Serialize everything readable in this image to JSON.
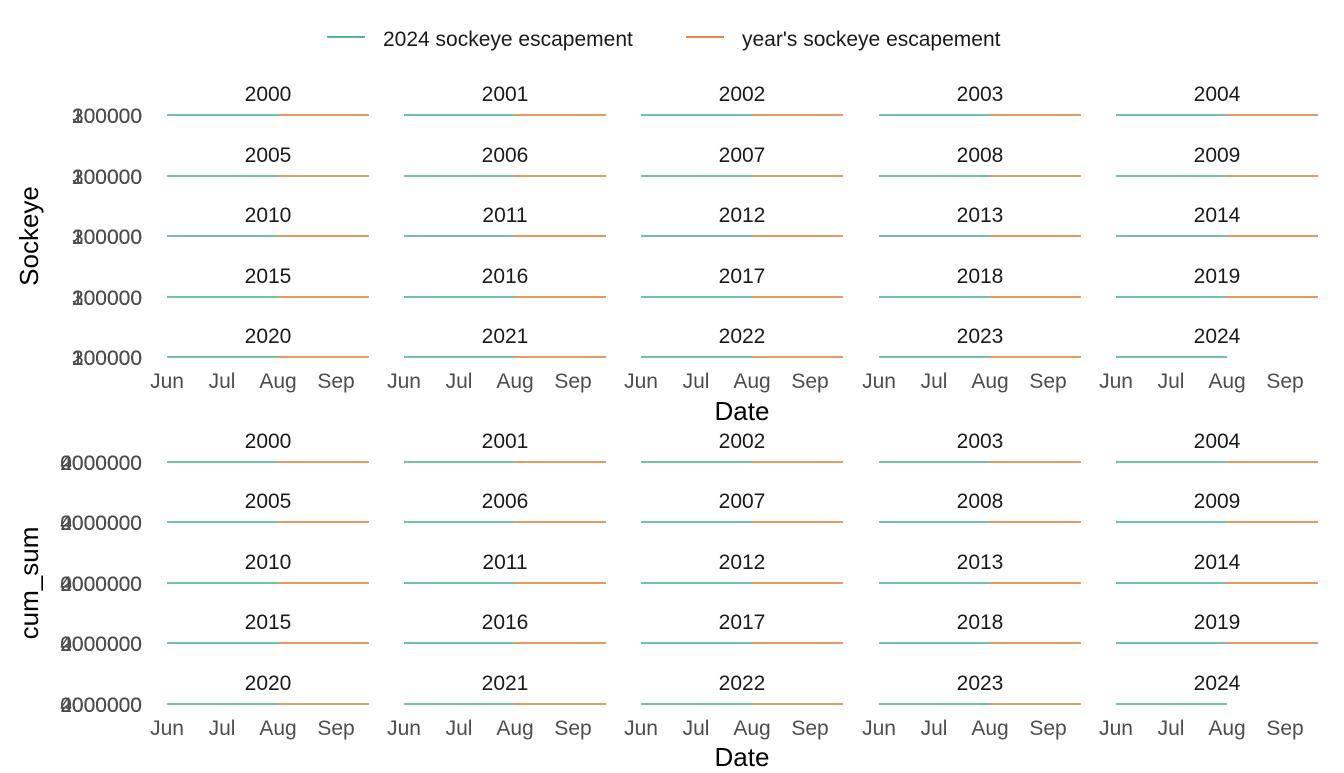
{
  "legend": {
    "items": [
      {
        "label": "2024 sockeye escapement",
        "color": "#1b9e77"
      },
      {
        "label": "year's sockeye escapement",
        "color": "#d95f02"
      }
    ],
    "placement": "top"
  },
  "chart_data": [
    {
      "type": "line",
      "facet_layout": "5x5 grid",
      "panels": [
        "2000",
        "2001",
        "2002",
        "2003",
        "2004",
        "2005",
        "2006",
        "2007",
        "2008",
        "2009",
        "2010",
        "2011",
        "2012",
        "2013",
        "2014",
        "2015",
        "2016",
        "2017",
        "2018",
        "2019",
        "2020",
        "2021",
        "2022",
        "2023",
        "2024"
      ],
      "xlabel": "Date",
      "ylabel": "Sockeye",
      "x_ticks": [
        "Jun",
        "Jul",
        "Aug",
        "Sep"
      ],
      "y_tick_overprinted": [
        "200000",
        "300000",
        "100000"
      ],
      "series": [
        {
          "name": "2024 sockeye escapement",
          "color": "#1b9e77",
          "x_range": [
            "Jun",
            "Aug"
          ]
        },
        {
          "name": "year's sockeye escapement",
          "color": "#d95f02",
          "x_range": [
            "Aug",
            "Sep"
          ]
        }
      ],
      "grid": false
    },
    {
      "type": "line",
      "facet_layout": "5x5 grid",
      "panels": [
        "2000",
        "2001",
        "2002",
        "2003",
        "2004",
        "2005",
        "2006",
        "2007",
        "2008",
        "2009",
        "2010",
        "2011",
        "2012",
        "2013",
        "2014",
        "2015",
        "2016",
        "2017",
        "2018",
        "2019",
        "2020",
        "2021",
        "2022",
        "2023",
        "2024"
      ],
      "xlabel": "Date",
      "ylabel": "cum_sum",
      "x_ticks": [
        "Jun",
        "Jul",
        "Aug",
        "Sep"
      ],
      "y_tick_overprinted": [
        "4000000",
        "2000000",
        "0000000"
      ],
      "series": [
        {
          "name": "2024 sockeye escapement",
          "color": "#1b9e77",
          "x_range": [
            "Jun",
            "Aug"
          ]
        },
        {
          "name": "year's sockeye escapement",
          "color": "#d95f02",
          "x_range": [
            "Aug",
            "Sep"
          ]
        }
      ],
      "grid": false
    }
  ]
}
